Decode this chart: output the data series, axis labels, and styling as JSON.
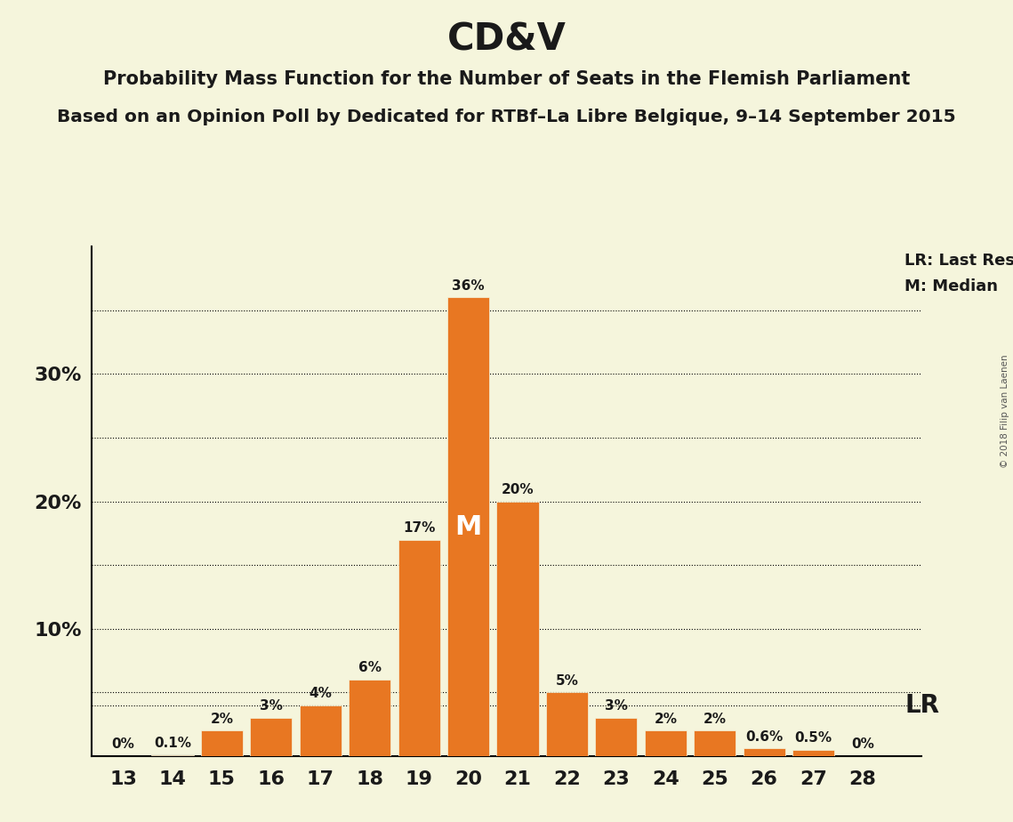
{
  "title": "CD&V",
  "subtitle1": "Probability Mass Function for the Number of Seats in the Flemish Parliament",
  "subtitle2": "Based on an Opinion Poll by Dedicated for RTBf–La Libre Belgique, 9–14 September 2015",
  "watermark": "© 2018 Filip van Laenen",
  "seats": [
    13,
    14,
    15,
    16,
    17,
    18,
    19,
    20,
    21,
    22,
    23,
    24,
    25,
    26,
    27,
    28
  ],
  "probabilities": [
    0.0,
    0.1,
    2.0,
    3.0,
    4.0,
    6.0,
    17.0,
    36.0,
    20.0,
    5.0,
    3.0,
    2.0,
    2.0,
    0.6,
    0.5,
    0.0
  ],
  "bar_color": "#E87722",
  "background_color": "#F5F5DC",
  "text_color": "#1A1A1A",
  "median_seat": 20,
  "last_result_value": 4.0,
  "dotted_lines": [
    5.0,
    10.0,
    15.0,
    20.0,
    25.0,
    30.0,
    35.0
  ],
  "legend_lr": "LR: Last Result",
  "legend_m": "M: Median",
  "bar_labels": [
    "0%",
    "0.1%",
    "2%",
    "3%",
    "4%",
    "6%",
    "17%",
    "36%",
    "20%",
    "5%",
    "3%",
    "2%",
    "2%",
    "0.6%",
    "0.5%",
    "0%"
  ]
}
